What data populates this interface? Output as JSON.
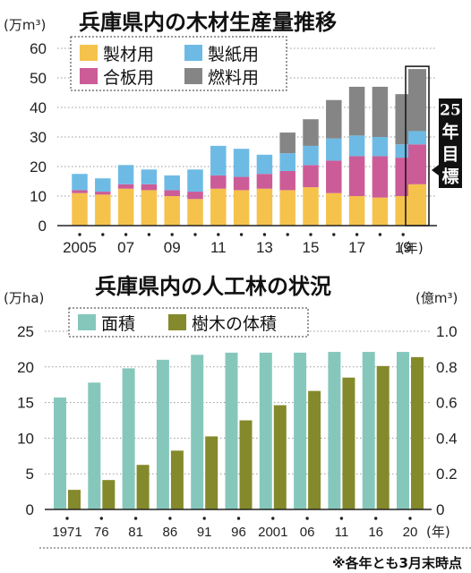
{
  "chart_data": [
    {
      "type": "bar",
      "stacked": true,
      "title": "兵庫県内の木材生産量推移",
      "unit": "(万m³)",
      "year_unit": "(年)",
      "ylim": [
        0,
        60
      ],
      "yticks": [
        "0",
        "10",
        "20",
        "30",
        "40",
        "50",
        "60"
      ],
      "categories": [
        "2005",
        "2006",
        "2007",
        "2008",
        "2009",
        "2010",
        "2011",
        "2012",
        "2013",
        "2014",
        "2015",
        "2016",
        "2017",
        "2018",
        "2019"
      ],
      "xtick_labels": [
        {
          "index": 0,
          "label": "2005"
        },
        {
          "index": 2,
          "label": "07"
        },
        {
          "index": 4,
          "label": "09"
        },
        {
          "index": 6,
          "label": "11"
        },
        {
          "index": 8,
          "label": "13"
        },
        {
          "index": 10,
          "label": "15"
        },
        {
          "index": 12,
          "label": "17"
        },
        {
          "index": 14,
          "label": "19"
        }
      ],
      "series": [
        {
          "name": "製材用",
          "color": "#f5c24c",
          "values": [
            11,
            10.5,
            12.5,
            12,
            10,
            9,
            12.5,
            12,
            12.5,
            12,
            13,
            11,
            10,
            9.5,
            10
          ]
        },
        {
          "name": "合板用",
          "color": "#cc5c97",
          "values": [
            1,
            1,
            1.5,
            2,
            2,
            2.5,
            4.5,
            4.5,
            5,
            6.5,
            7.5,
            11,
            13.5,
            14,
            13
          ]
        },
        {
          "name": "製紙用",
          "color": "#6dbbe5",
          "values": [
            5.5,
            4.5,
            6.5,
            5,
            5,
            7.5,
            10,
            9.5,
            6.5,
            6,
            6.5,
            7.5,
            7,
            6.5,
            4.5
          ]
        },
        {
          "name": "燃料用",
          "color": "#858585",
          "values": [
            0,
            0,
            0,
            0,
            0,
            0,
            0,
            0,
            0,
            7,
            9,
            13,
            16.5,
            17,
            17
          ]
        }
      ],
      "target": {
        "label": "25年目標",
        "values": [
          14,
          13.5,
          4.5,
          21
        ]
      }
    },
    {
      "type": "bar",
      "title": "兵庫県内の人工林の状況",
      "unit_left": "(万ha)",
      "unit_right": "(億m³)",
      "year_unit": "(年)",
      "ylim_left": [
        0,
        25
      ],
      "ylim_right": [
        0,
        1.0
      ],
      "yticks_left": [
        "0",
        "5",
        "10",
        "15",
        "20",
        "25"
      ],
      "yticks_right": [
        "0",
        "0.2",
        "0.4",
        "0.6",
        "0.8",
        "1.0"
      ],
      "categories": [
        "1971",
        "76",
        "81",
        "86",
        "91",
        "96",
        "2001",
        "06",
        "11",
        "16",
        "20"
      ],
      "series": [
        {
          "name": "面積",
          "axis": "left",
          "color": "#85c8bb",
          "values": [
            15.7,
            17.8,
            19.8,
            21,
            21.7,
            22,
            22,
            22,
            22.1,
            22.1,
            22.1
          ]
        },
        {
          "name": "樹木の体積",
          "axis": "right",
          "color": "#848a2b",
          "values": [
            0.11,
            0.165,
            0.25,
            0.33,
            0.41,
            0.5,
            0.585,
            0.665,
            0.74,
            0.805,
            0.855
          ]
        }
      ],
      "note": "※各年とも3月末時点"
    }
  ]
}
